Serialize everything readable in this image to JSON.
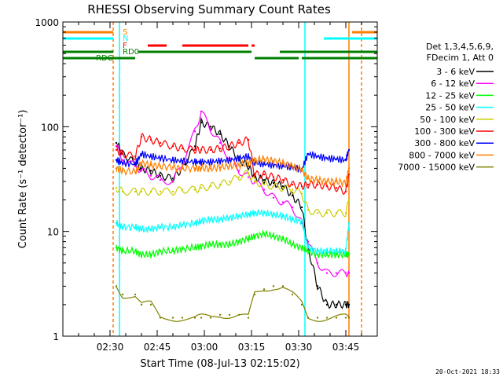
{
  "chart_data": {
    "type": "line",
    "title": "RHESSI Observing Summary Count Rates",
    "xlabel": "Start Time (08-Jul-13 02:15:02)",
    "ylabel": "Count Rate (s⁻¹ detector⁻¹)",
    "y_scale": "log",
    "ylim": [
      1,
      1000
    ],
    "xlim": [
      "02:15",
      "03:55"
    ],
    "x_ticks": [
      "02:30",
      "02:45",
      "03:00",
      "03:15",
      "03:30",
      "03:45"
    ],
    "y_ticks": [
      "1",
      "10",
      "100",
      "1000"
    ],
    "grid": false,
    "legend_position": "right",
    "legend_header": [
      "Det 1,3,4,5,6,9,",
      "FDecim 1, Att 0"
    ],
    "footer_date": "20-Oct-2021 18:33",
    "flag_labels": {
      "S": "S",
      "N": "N",
      "F": "F",
      "RDO": "RD0",
      "RDG": "RDG"
    },
    "flags": [
      {
        "label": "S",
        "color": "#ff7f00",
        "segments": [
          [
            "02:15",
            "02:31"
          ],
          [
            "03:47",
            "03:55"
          ]
        ]
      },
      {
        "label": "N",
        "color": "#00ffff",
        "segments": [
          [
            "02:15",
            "02:31"
          ],
          [
            "03:38",
            "03:55"
          ]
        ]
      },
      {
        "label": "F",
        "color": "#ff0000",
        "segments": [
          [
            "02:42",
            "02:48"
          ],
          [
            "02:53",
            "03:14"
          ],
          [
            "03:15",
            "03:16"
          ]
        ]
      },
      {
        "label": "RDO",
        "color": "#008000",
        "segments": [
          [
            "02:15",
            "02:31"
          ],
          [
            "02:39",
            "03:15"
          ],
          [
            "03:24",
            "03:55"
          ]
        ]
      },
      {
        "label": "RDG",
        "color": "#008000",
        "segments": [
          [
            "02:15",
            "02:31"
          ],
          [
            "02:31",
            "02:38"
          ],
          [
            "03:16",
            "03:30"
          ],
          [
            "03:31",
            "03:55"
          ]
        ]
      }
    ],
    "vlines": [
      {
        "time": "02:31",
        "color": "#ff7f00",
        "style": "dashed"
      },
      {
        "time": "02:33",
        "color": "#00ffff",
        "style": "solid"
      },
      {
        "time": "03:32",
        "color": "#00ffff",
        "style": "solid"
      },
      {
        "time": "03:46",
        "color": "#ff7f00",
        "style": "solid"
      },
      {
        "time": "03:50",
        "color": "#ff7f00",
        "style": "dashed"
      }
    ],
    "x": [
      "02:32",
      "02:34",
      "02:38",
      "02:40",
      "02:43",
      "02:46",
      "02:50",
      "02:53",
      "02:57",
      "02:59",
      "03:02",
      "03:05",
      "03:08",
      "03:11",
      "03:14",
      "03:16",
      "03:19",
      "03:22",
      "03:25",
      "03:28",
      "03:31",
      "03:33",
      "03:36",
      "03:39",
      "03:42",
      "03:45",
      "03:46"
    ],
    "series": [
      {
        "name": "3 - 6 keV",
        "color": "#000000",
        "values": [
          70,
          55,
          45,
          40,
          38,
          34,
          32,
          40,
          65,
          110,
          100,
          85,
          65,
          48,
          42,
          33,
          31,
          29,
          27,
          22,
          17,
          7,
          3,
          2,
          2,
          2,
          2
        ]
      },
      {
        "name": "6 - 12 keV",
        "color": "#ff00ff",
        "values": [
          65,
          48,
          42,
          38,
          34,
          31,
          30,
          45,
          90,
          140,
          95,
          70,
          50,
          38,
          33,
          30,
          25,
          21,
          19,
          17,
          12,
          8,
          5,
          4,
          4,
          4,
          4
        ]
      },
      {
        "name": "12 - 25 keV",
        "color": "#00ff00",
        "values": [
          7,
          6.5,
          6.5,
          6,
          6,
          6.5,
          6.5,
          6.8,
          7,
          7.2,
          7.5,
          7.5,
          7.5,
          8,
          8.5,
          9,
          9.5,
          9,
          8.5,
          7.5,
          7,
          6.5,
          6,
          6,
          6,
          6,
          6
        ]
      },
      {
        "name": "25 - 50 keV",
        "color": "#00ffff",
        "values": [
          12,
          11,
          11,
          10.5,
          10.5,
          11,
          11,
          11.5,
          12,
          12.5,
          13,
          13,
          13.5,
          14,
          14.5,
          15,
          15,
          14.5,
          14,
          13,
          12.5,
          7,
          6.5,
          6.5,
          6.5,
          6.5,
          12
        ]
      },
      {
        "name": "50 - 100 keV",
        "color": "#cccc00",
        "values": [
          26,
          24,
          24,
          24,
          24,
          24,
          24,
          25,
          25,
          26,
          27,
          28,
          30,
          33,
          36,
          30,
          28,
          27,
          26,
          25,
          23,
          16,
          15,
          15,
          15,
          15,
          20
        ]
      },
      {
        "name": "100 - 300 keV",
        "color": "#ff0000",
        "values": [
          60,
          55,
          52,
          80,
          75,
          70,
          65,
          62,
          60,
          60,
          60,
          62,
          65,
          70,
          75,
          35,
          35,
          33,
          31,
          28,
          27,
          28,
          28,
          27,
          26,
          24,
          35
        ]
      },
      {
        "name": "300 - 800 keV",
        "color": "#0000ff",
        "values": [
          48,
          45,
          44,
          55,
          52,
          50,
          48,
          47,
          46,
          46,
          46,
          47,
          48,
          50,
          52,
          45,
          44,
          43,
          42,
          41,
          39,
          55,
          52,
          50,
          49,
          48,
          60
        ]
      },
      {
        "name": "800 - 7000 keV",
        "color": "#ff7f00",
        "values": [
          40,
          38,
          37,
          45,
          43,
          42,
          41,
          40,
          40,
          40,
          40,
          41,
          42,
          43,
          45,
          48,
          49,
          47,
          45,
          42,
          39,
          32,
          31,
          30,
          30,
          29,
          40
        ]
      },
      {
        "name": "7000 - 15000 keV",
        "color": "#808000",
        "values": [
          3,
          2.5,
          2.5,
          2,
          2,
          1.5,
          1.5,
          1.5,
          1.5,
          1.5,
          1.5,
          1.6,
          1.6,
          1.6,
          1.5,
          2.5,
          2.8,
          3,
          3,
          2.5,
          2,
          1.5,
          1.5,
          1.5,
          1.5,
          1.5,
          1.5
        ]
      }
    ]
  }
}
